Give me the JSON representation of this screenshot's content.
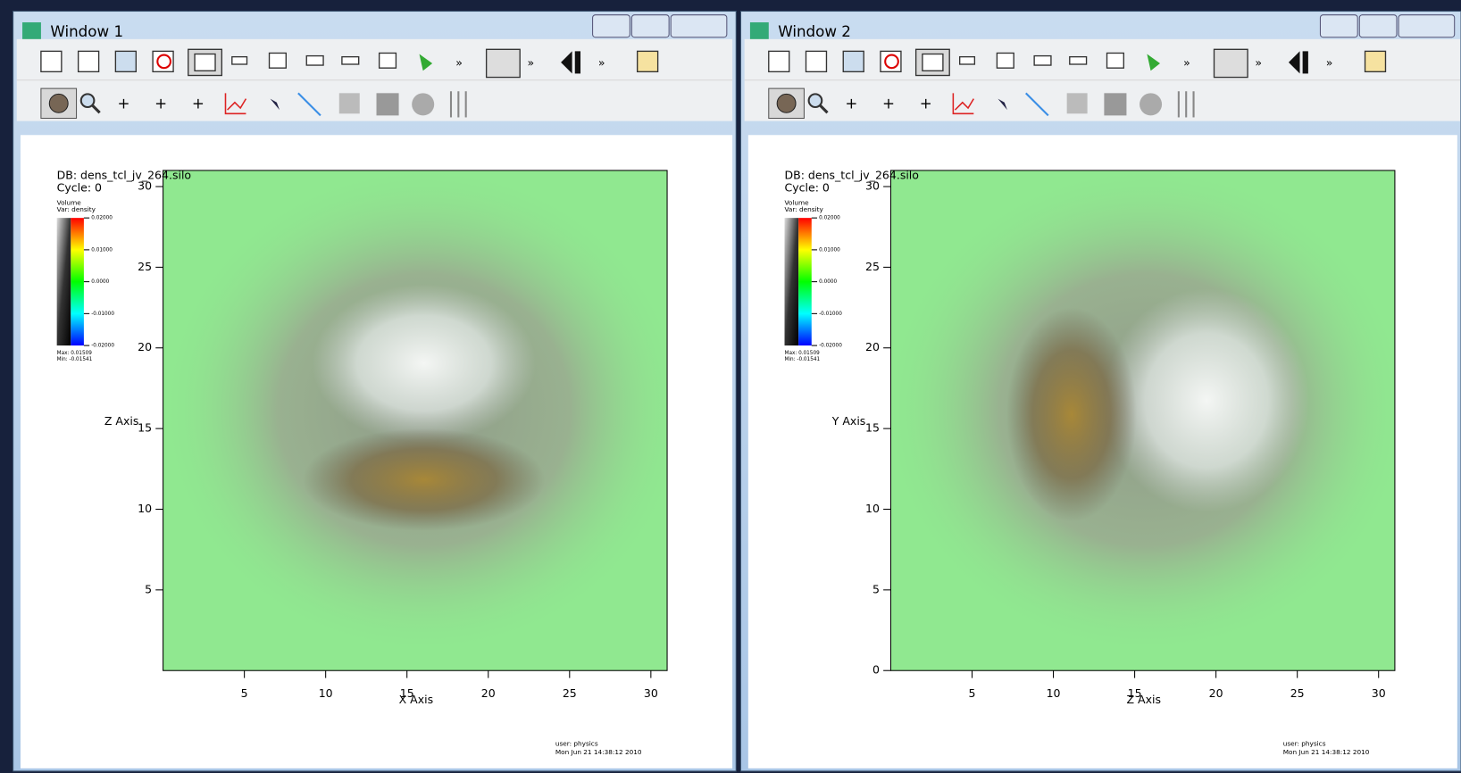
{
  "windows": [
    {
      "title": "Window 1",
      "db": "DB: dens_tcl_jv_264.silo",
      "cycle": "Cycle: 0",
      "legend": {
        "plot": "Volume",
        "var": "Var: density",
        "labels": [
          "0.02000",
          "0.01000",
          "0.0000",
          "-0.01000",
          "-0.02000"
        ],
        "max": "Max: 0.01509",
        "min": "Min: -0.01541"
      },
      "x_label": "X Axis",
      "y_label": "Z Axis",
      "xlim": [
        0,
        31
      ],
      "ylim": [
        0,
        31
      ],
      "xticks": [
        5,
        10,
        15,
        20,
        25,
        30
      ],
      "yticks": [
        5,
        10,
        15,
        20,
        25,
        30
      ],
      "user": "user: physics",
      "date": "Mon Jun 21 14:38:12 2010"
    },
    {
      "title": "Window 2",
      "db": "DB: dens_tcl_jv_264.silo",
      "cycle": "Cycle: 0",
      "legend": {
        "plot": "Volume",
        "var": "Var: density",
        "labels": [
          "0.02000",
          "0.01000",
          "0.0000",
          "-0.01000",
          "-0.02000"
        ],
        "max": "Max: 0.01509",
        "min": "Min: -0.01541"
      },
      "x_label": "Z Axis",
      "y_label": "Y Axis",
      "xlim": [
        0,
        31
      ],
      "ylim": [
        0,
        31
      ],
      "xticks": [
        5,
        10,
        15,
        20,
        25,
        30
      ],
      "yticks": [
        0,
        5,
        10,
        15,
        20,
        25,
        30
      ],
      "user": "user: physics",
      "date": "Mon Jun 21 14:38:12 2010"
    }
  ]
}
